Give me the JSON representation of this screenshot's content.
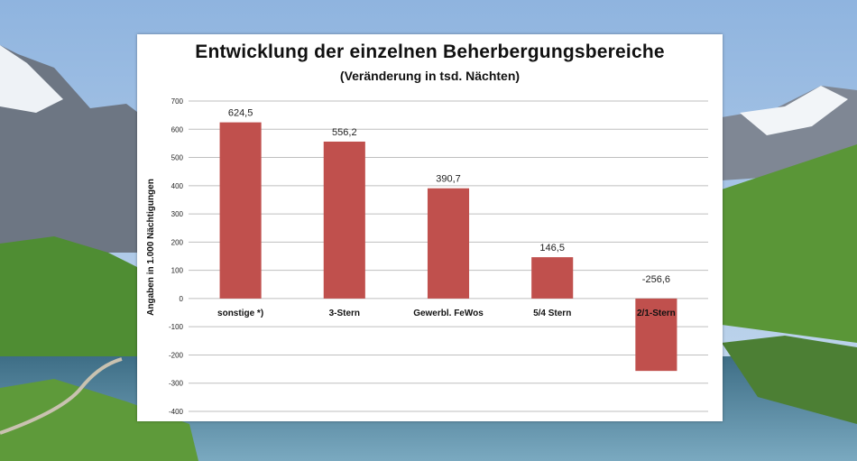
{
  "chart_data": {
    "type": "bar",
    "title": "Entwicklung der einzelnen Beherbergungsbereiche",
    "subtitle": "(Veränderung in tsd. Nächten)",
    "xlabel": "",
    "ylabel": "Angaben in 1.000 Nächtigungen",
    "categories": [
      "sonstige *)",
      "3-Stern",
      "Gewerbl. FeWos",
      "5/4 Stern",
      "2/1-Stern"
    ],
    "values": [
      624.5,
      556.2,
      390.7,
      146.5,
      -256.6
    ],
    "data_labels": [
      "624,5",
      "556,2",
      "390,7",
      "146,5",
      "-256,6"
    ],
    "ylim": [
      -400,
      700
    ],
    "yticks": [
      700,
      600,
      500,
      400,
      300,
      200,
      100,
      0,
      -100,
      -200,
      -300,
      -400
    ],
    "grid": true,
    "legend": "none",
    "bar_color": "#c0504d",
    "grid_color": "#bfbfbf"
  }
}
